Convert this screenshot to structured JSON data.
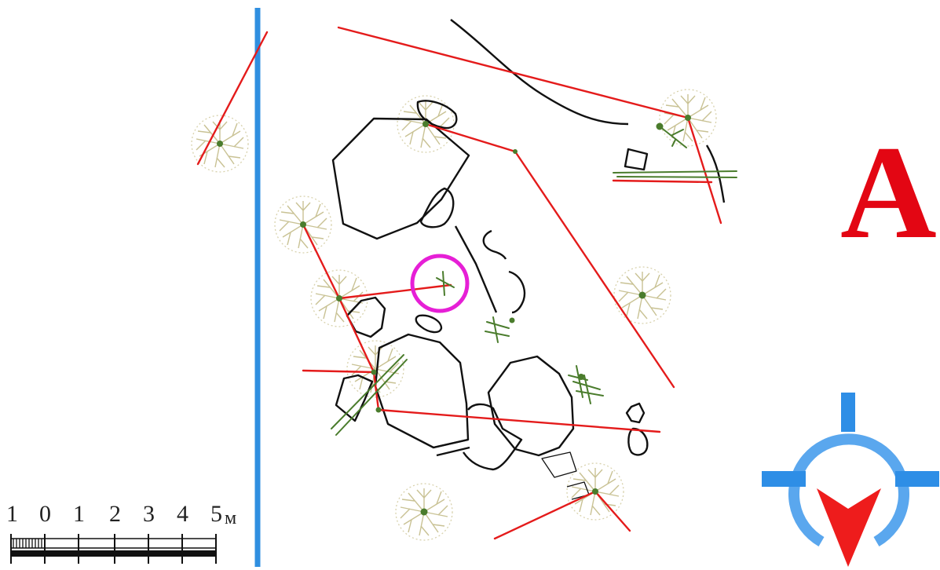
{
  "section_letter": "А",
  "scale": {
    "labels": [
      "1",
      "0",
      "1",
      "2",
      "3",
      "4",
      "5"
    ],
    "unit": "м"
  },
  "colors": {
    "section_letter": "#e30613",
    "crack_lines": "#e41b1b",
    "stones": "#111111",
    "vegetation": "#4a7c2c",
    "boundary": "#2f8fe0",
    "highlight": "#e61fd6",
    "tree_crowns": "#cfc9a0",
    "compass_ring": "#5aa7ee",
    "compass_arrow": "#ee1c1c"
  },
  "icons": [
    "tree-icon",
    "compass-icon",
    "north-arrow-icon"
  ]
}
